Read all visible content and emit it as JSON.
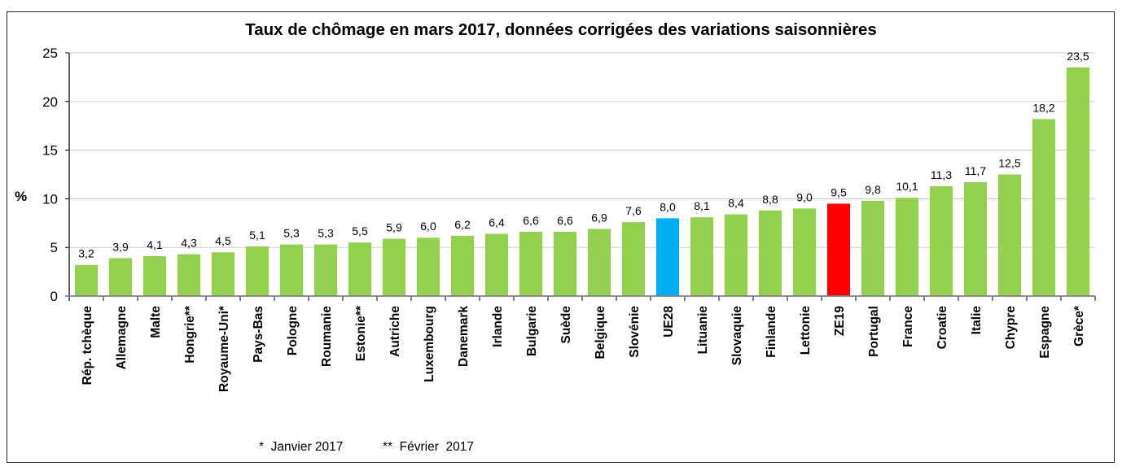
{
  "chart_data": {
    "type": "bar",
    "title": "Taux de chômage en mars 2017, données corrigées des variations saisonnières",
    "xlabel": "",
    "ylabel": "%",
    "ylim": [
      0,
      25
    ],
    "yticks": [
      0,
      5,
      10,
      15,
      20,
      25
    ],
    "grid": true,
    "categories": [
      "Rép. tchèque",
      "Allemagne",
      "Malte",
      "Hongrie**",
      "Royaume-Uni*",
      "Pays-Bas",
      "Pologne",
      "Roumanie",
      "Estonie**",
      "Autriche",
      "Luxembourg",
      "Danemark",
      "Irlande",
      "Bulgarie",
      "Suède",
      "Belgique",
      "Slovénie",
      "UE28",
      "Lituanie",
      "Slovaquie",
      "Finlande",
      "Lettonie",
      "ZE19",
      "Portugal",
      "France",
      "Croatie",
      "Italie",
      "Chypre",
      "Espagne",
      "Grèce*"
    ],
    "values": [
      3.2,
      3.9,
      4.1,
      4.3,
      4.5,
      5.1,
      5.3,
      5.3,
      5.5,
      5.9,
      6.0,
      6.2,
      6.4,
      6.6,
      6.6,
      6.9,
      7.6,
      8.0,
      8.1,
      8.4,
      8.8,
      9.0,
      9.5,
      9.8,
      10.1,
      11.3,
      11.7,
      12.5,
      18.2,
      23.5
    ],
    "data_labels": [
      "3,2",
      "3,9",
      "4,1",
      "4,3",
      "4,5",
      "5,1",
      "5,3",
      "5,3",
      "5,5",
      "5,9",
      "6,0",
      "6,2",
      "6,4",
      "6,6",
      "6,6",
      "6,9",
      "7,6",
      "8,0",
      "8,1",
      "8,4",
      "8,8",
      "9,0",
      "9,5",
      "9,8",
      "10,1",
      "11,3",
      "11,7",
      "12,5",
      "18,2",
      "23,5"
    ],
    "colors": {
      "default": "#92d050",
      "highlight": {
        "UE28": "#00b0f0",
        "ZE19": "#ff0000"
      },
      "grid": "#d0d0d0",
      "axis": "#808080"
    },
    "legend": "none"
  },
  "footnotes": {
    "janvier": "*  Janvier 2017",
    "fevrier": "**  Février  2017"
  }
}
